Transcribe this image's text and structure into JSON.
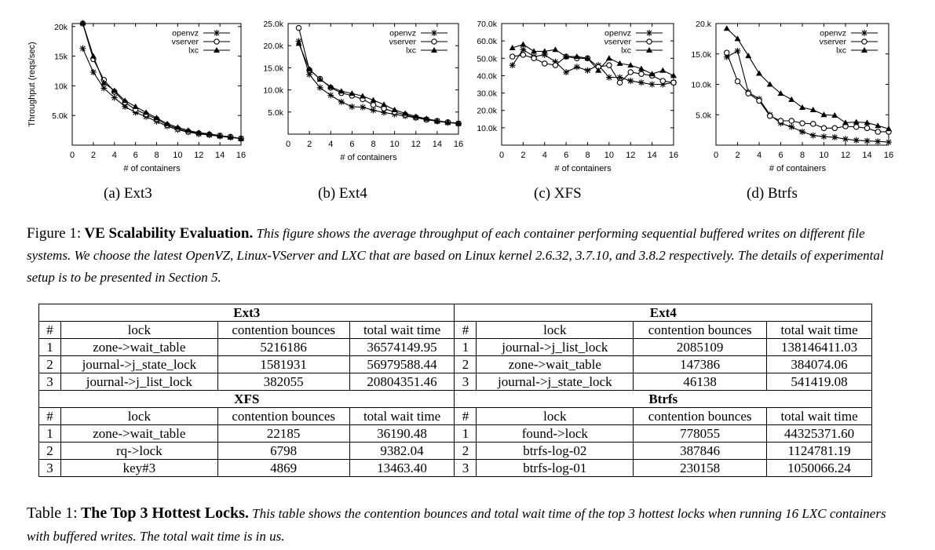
{
  "chart_data": [
    {
      "type": "line",
      "id": "ext3",
      "subcaption": "(a) Ext3",
      "ylabel": "Throughput (reqs/sec)",
      "xlabel": "# of containers",
      "xlim": [
        0,
        16
      ],
      "ylim": [
        0,
        20500
      ],
      "xticks": [
        0,
        2,
        4,
        6,
        8,
        10,
        12,
        14,
        16
      ],
      "yticks": [
        5000,
        10000,
        15000,
        20000
      ],
      "ytick_labels": [
        "5.0k",
        "10k",
        "15k",
        "20k"
      ],
      "legend": "top-right",
      "x": [
        1,
        2,
        3,
        4,
        5,
        6,
        7,
        8,
        9,
        10,
        11,
        12,
        13,
        14,
        15,
        16
      ],
      "series": [
        {
          "name": "openvz",
          "marker": "star",
          "values": [
            16300,
            12300,
            9600,
            8000,
            6500,
            5500,
            4800,
            4000,
            3200,
            2600,
            2200,
            1900,
            1700,
            1500,
            1300,
            1100
          ]
        },
        {
          "name": "vserver",
          "marker": "circle",
          "values": [
            20500,
            14500,
            11000,
            9000,
            7200,
            6000,
            5200,
            4400,
            3400,
            2800,
            2300,
            2000,
            1800,
            1600,
            1400,
            1100
          ]
        },
        {
          "name": "lxc",
          "marker": "triangle",
          "values": [
            20600,
            15000,
            10500,
            9200,
            7500,
            6500,
            5500,
            4600,
            3600,
            3000,
            2500,
            2100,
            1900,
            1600,
            1400,
            1100
          ]
        }
      ]
    },
    {
      "type": "line",
      "id": "ext4",
      "subcaption": "(b) Ext4",
      "ylabel": "",
      "xlabel": "# of containers",
      "xlim": [
        0,
        16
      ],
      "ylim": [
        0,
        25000
      ],
      "xticks": [
        0,
        2,
        4,
        6,
        8,
        10,
        12,
        14,
        16
      ],
      "yticks": [
        5000,
        10000,
        15000,
        20000,
        25000
      ],
      "ytick_labels": [
        "5.0k",
        "10.0k",
        "15.0k",
        "20.0k",
        "25.0k"
      ],
      "legend": "top-right",
      "x": [
        1,
        2,
        3,
        4,
        5,
        6,
        7,
        8,
        9,
        10,
        11,
        12,
        13,
        14,
        15,
        16
      ],
      "series": [
        {
          "name": "openvz",
          "marker": "star",
          "values": [
            21000,
            13500,
            10500,
            8800,
            7300,
            6200,
            6100,
            5400,
            4900,
            4500,
            4100,
            3700,
            3300,
            2900,
            2600,
            2400
          ]
        },
        {
          "name": "vserver",
          "marker": "circle",
          "values": [
            24000,
            14500,
            12500,
            10500,
            9300,
            8700,
            7900,
            6600,
            5800,
            5000,
            4400,
            3800,
            3300,
            3000,
            2700,
            2400
          ]
        },
        {
          "name": "lxc",
          "marker": "triangle",
          "values": [
            20500,
            14700,
            12400,
            10700,
            9700,
            9200,
            8600,
            7700,
            6700,
            5500,
            4700,
            4000,
            3500,
            3000,
            2700,
            2500
          ]
        }
      ]
    },
    {
      "type": "line",
      "id": "xfs",
      "subcaption": "(c) XFS",
      "ylabel": "",
      "xlabel": "# of containers",
      "xlim": [
        0,
        16
      ],
      "ylim": [
        0,
        70000
      ],
      "xticks": [
        0,
        2,
        4,
        6,
        8,
        10,
        12,
        14,
        16
      ],
      "yticks": [
        10000,
        20000,
        30000,
        40000,
        50000,
        60000,
        70000
      ],
      "ytick_labels": [
        "10.0k",
        "20.0k",
        "30.0k",
        "40.0k",
        "50.0k",
        "60.0k",
        "70.0k"
      ],
      "legend": "top-right",
      "x": [
        1,
        2,
        3,
        4,
        5,
        6,
        7,
        8,
        9,
        10,
        11,
        12,
        13,
        14,
        15,
        16
      ],
      "series": [
        {
          "name": "openvz",
          "marker": "star",
          "values": [
            46000,
            55000,
            51000,
            52000,
            48000,
            42000,
            45000,
            43000,
            46000,
            39000,
            39000,
            37000,
            36000,
            35000,
            35000,
            36000
          ]
        },
        {
          "name": "vserver",
          "marker": "circle",
          "values": [
            51000,
            52000,
            50000,
            47000,
            46000,
            51000,
            50000,
            50000,
            45000,
            46000,
            36000,
            42000,
            41000,
            40000,
            37000,
            36000
          ]
        },
        {
          "name": "lxc",
          "marker": "triangle",
          "values": [
            56000,
            58000,
            54000,
            54000,
            55000,
            51000,
            51000,
            50000,
            43000,
            50000,
            47000,
            46000,
            44000,
            41000,
            43000,
            40000
          ]
        }
      ]
    },
    {
      "type": "line",
      "id": "btrfs",
      "subcaption": "(d) Btrfs",
      "ylabel": "",
      "xlabel": "# of containers",
      "xlim": [
        0,
        16
      ],
      "ylim": [
        0,
        20000
      ],
      "xticks": [
        0,
        2,
        4,
        6,
        8,
        10,
        12,
        14,
        16
      ],
      "yticks": [
        5000,
        10000,
        15000,
        20000
      ],
      "ytick_labels": [
        "5.0k",
        "10.0k",
        "15.0k",
        "20.k"
      ],
      "legend": "top-right",
      "x": [
        1,
        2,
        3,
        4,
        5,
        6,
        7,
        8,
        9,
        10,
        11,
        12,
        13,
        14,
        15,
        16
      ],
      "series": [
        {
          "name": "openvz",
          "marker": "star",
          "values": [
            14500,
            15500,
            8700,
            7600,
            5000,
            3600,
            3000,
            2200,
            1600,
            1400,
            1300,
            1000,
            800,
            700,
            600,
            500
          ]
        },
        {
          "name": "vserver",
          "marker": "circle",
          "values": [
            15200,
            10500,
            8500,
            7300,
            4800,
            4000,
            4000,
            3600,
            3500,
            2800,
            2800,
            3100,
            3000,
            2800,
            2200,
            2200
          ]
        },
        {
          "name": "lxc",
          "marker": "triangle",
          "values": [
            19200,
            17500,
            14700,
            11800,
            10000,
            8500,
            7500,
            6200,
            5800,
            5000,
            4900,
            3700,
            3800,
            3700,
            3200,
            2700
          ]
        }
      ]
    }
  ],
  "figure_caption": {
    "label": "Figure 1:",
    "title": "VE Scalability Evaluation.",
    "text": "This figure shows the average throughput of each container performing sequential buffered writes on different file systems. We choose the latest OpenVZ, Linux-VServer and LXC that are based on Linux kernel 2.6.32, 3.7.10, and 3.8.2 respectively. The details of experimental setup is to be presented in Section 5."
  },
  "table": {
    "columns": [
      "#",
      "lock",
      "contention bounces",
      "total wait time"
    ],
    "sections": [
      {
        "left": {
          "title": "Ext3",
          "rows": [
            [
              "1",
              "zone->wait_table",
              "5216186",
              "36574149.95"
            ],
            [
              "2",
              "journal->j_state_lock",
              "1581931",
              "56979588.44"
            ],
            [
              "3",
              "journal->j_list_lock",
              "382055",
              "20804351.46"
            ]
          ]
        },
        "right": {
          "title": "Ext4",
          "rows": [
            [
              "1",
              "journal->j_list_lock",
              "2085109",
              "138146411.03"
            ],
            [
              "2",
              "zone->wait_table",
              "147386",
              "384074.06"
            ],
            [
              "3",
              "journal->j_state_lock",
              "46138",
              "541419.08"
            ]
          ]
        }
      },
      {
        "left": {
          "title": "XFS",
          "rows": [
            [
              "1",
              "zone->wait_table",
              "22185",
              "36190.48"
            ],
            [
              "2",
              "rq->lock",
              "6798",
              "9382.04"
            ],
            [
              "3",
              "key#3",
              "4869",
              "13463.40"
            ]
          ]
        },
        "right": {
          "title": "Btrfs",
          "rows": [
            [
              "1",
              "found->lock",
              "778055",
              "44325371.60"
            ],
            [
              "2",
              "btrfs-log-02",
              "387846",
              "1124781.19"
            ],
            [
              "3",
              "btrfs-log-01",
              "230158",
              "1050066.24"
            ]
          ]
        }
      }
    ]
  },
  "table_caption": {
    "label": "Table 1:",
    "title": "The Top 3 Hottest Locks.",
    "text": "This table shows the contention bounces and total wait time of the top 3 hottest locks when running 16 LXC containers with buffered writes. The total wait time is in us."
  }
}
